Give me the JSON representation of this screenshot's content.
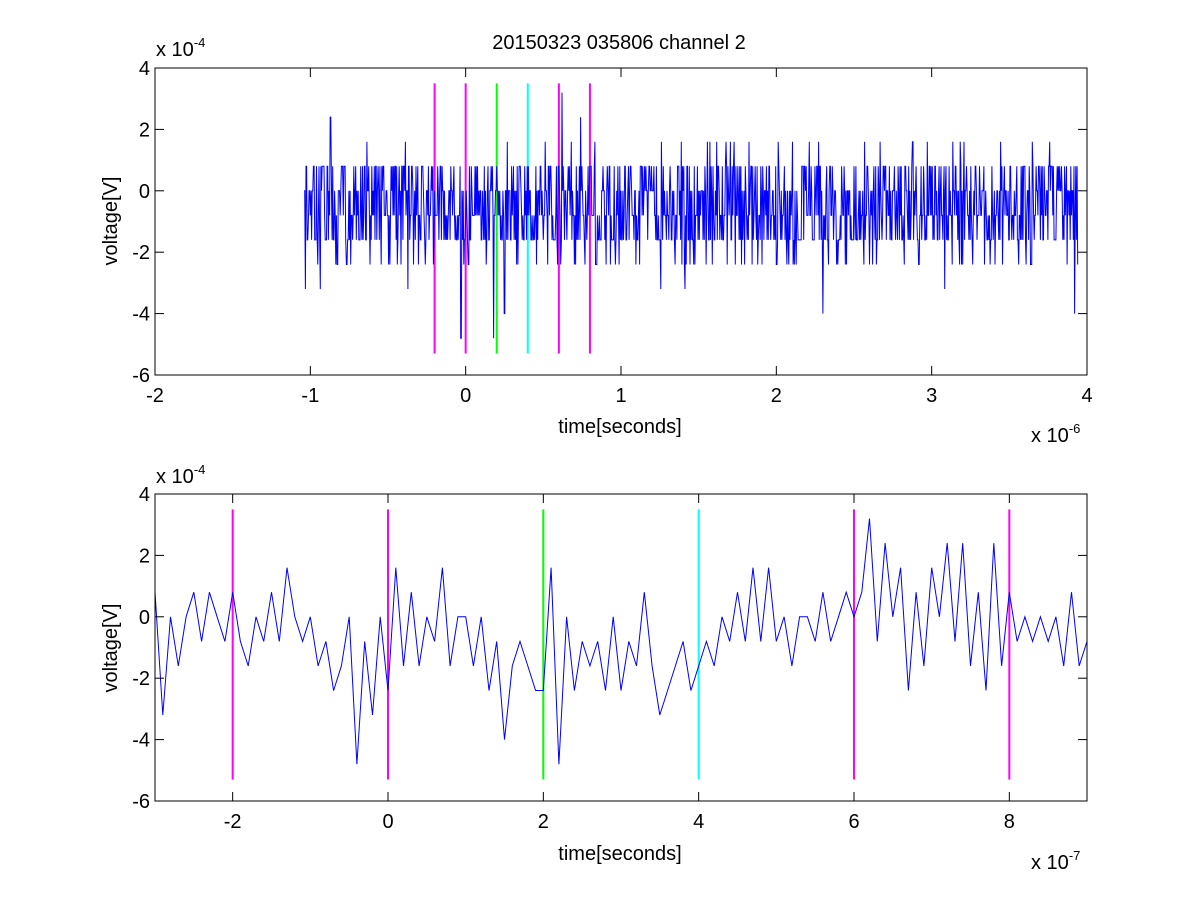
{
  "chart_data": [
    {
      "type": "line",
      "title": "20150323 035806 channel 2",
      "xlabel": "time[seconds]",
      "ylabel": "voltage[V]",
      "x_multiplier": "x 10",
      "x_exponent": "-6",
      "y_multiplier": "x 10",
      "y_exponent": "-4",
      "xlim": [
        -2,
        4
      ],
      "ylim": [
        -6,
        4
      ],
      "xticks": [
        -2,
        -1,
        0,
        1,
        2,
        3,
        4
      ],
      "yticks": [
        -6,
        -4,
        -2,
        0,
        2,
        4
      ],
      "trace_color": "#0000ff",
      "grid": false,
      "series": [
        {
          "x_range": [
            -1.04,
            3.94
          ],
          "levels": [
            -4,
            -3.2,
            -2.4,
            -1.6,
            -0.8,
            0,
            0.8,
            1.6,
            2.4,
            3.2
          ],
          "typical_range": [
            -1.6,
            0.8
          ],
          "peaks": [
            {
              "x": -0.87,
              "y": 2.4
            },
            {
              "x": -0.03,
              "y": -4.8
            },
            {
              "x": 0.18,
              "y": -4.8
            },
            {
              "x": 0.25,
              "y": -4.0
            },
            {
              "x": 0.62,
              "y": 3.2
            },
            {
              "x": 0.74,
              "y": 2.4
            },
            {
              "x": 2.3,
              "y": -4.0
            },
            {
              "x": 3.92,
              "y": -4.0
            }
          ]
        }
      ],
      "markers": [
        {
          "x": -0.2,
          "color": "#ff00ff"
        },
        {
          "x": 0.0,
          "color": "#ff00ff"
        },
        {
          "x": 0.2,
          "color": "#00ff00"
        },
        {
          "x": 0.4,
          "color": "#00ffff"
        },
        {
          "x": 0.6,
          "color": "#ff00ff"
        },
        {
          "x": 0.8,
          "color": "#ff00ff"
        }
      ],
      "marker_yrange": [
        -5.3,
        3.5
      ]
    },
    {
      "type": "line",
      "title": "",
      "xlabel": "time[seconds]",
      "ylabel": "voltage[V]",
      "x_multiplier": "x 10",
      "x_exponent": "-7",
      "y_multiplier": "x 10",
      "y_exponent": "-4",
      "xlim": [
        -3,
        9
      ],
      "ylim": [
        -6,
        4
      ],
      "xticks": [
        -2,
        0,
        2,
        4,
        6,
        8
      ],
      "yticks": [
        -6,
        -4,
        -2,
        0,
        2,
        4
      ],
      "trace_color": "#0000ff",
      "grid": false,
      "series": [
        {
          "x": [
            -3.0,
            -2.9,
            -2.8,
            -2.7,
            -2.6,
            -2.5,
            -2.4,
            -2.3,
            -2.2,
            -2.1,
            -2.0,
            -1.9,
            -1.8,
            -1.7,
            -1.6,
            -1.5,
            -1.4,
            -1.3,
            -1.2,
            -1.1,
            -1.0,
            -0.9,
            -0.8,
            -0.7,
            -0.6,
            -0.5,
            -0.4,
            -0.3,
            -0.2,
            -0.1,
            0.0,
            0.1,
            0.2,
            0.3,
            0.4,
            0.5,
            0.6,
            0.7,
            0.8,
            0.9,
            1.0,
            1.1,
            1.2,
            1.3,
            1.4,
            1.5,
            1.6,
            1.7,
            1.8,
            1.9,
            2.0,
            2.1,
            2.2,
            2.3,
            2.4,
            2.5,
            2.6,
            2.7,
            2.8,
            2.9,
            3.0,
            3.1,
            3.2,
            3.3,
            3.4,
            3.5,
            3.6,
            3.7,
            3.8,
            3.9,
            4.0,
            4.1,
            4.2,
            4.3,
            4.4,
            4.5,
            4.6,
            4.7,
            4.8,
            4.9,
            5.0,
            5.1,
            5.2,
            5.3,
            5.4,
            5.5,
            5.6,
            5.7,
            5.8,
            5.9,
            6.0,
            6.1,
            6.2,
            6.3,
            6.4,
            6.5,
            6.6,
            6.7,
            6.8,
            6.9,
            7.0,
            7.1,
            7.2,
            7.3,
            7.4,
            7.5,
            7.6,
            7.7,
            7.8,
            7.9,
            8.0,
            8.1,
            8.2,
            8.3,
            8.4,
            8.5,
            8.6,
            8.7,
            8.8,
            8.9,
            9.0
          ],
          "y": [
            0.8,
            -3.2,
            0.0,
            -1.6,
            0.0,
            0.8,
            -0.8,
            0.8,
            0.0,
            -0.8,
            0.8,
            -0.8,
            -1.6,
            0.0,
            -0.8,
            0.8,
            -0.8,
            1.6,
            0.0,
            -0.8,
            0.0,
            -1.6,
            -0.8,
            -2.4,
            -1.6,
            0.0,
            -4.8,
            -0.8,
            -3.2,
            0.0,
            -2.4,
            1.6,
            -1.6,
            0.8,
            -1.6,
            0.0,
            -0.8,
            1.6,
            -1.6,
            0.0,
            0.0,
            -1.6,
            0.0,
            -2.4,
            -0.8,
            -4.0,
            -1.6,
            -0.8,
            -1.6,
            -2.4,
            -2.4,
            1.6,
            -4.8,
            0.0,
            -2.4,
            -0.8,
            -1.6,
            -0.8,
            -2.4,
            0.0,
            -2.4,
            -0.8,
            -1.6,
            0.8,
            -1.6,
            -3.2,
            -2.4,
            -1.6,
            -0.8,
            -2.4,
            -1.6,
            -0.8,
            -1.6,
            0.0,
            -0.8,
            0.8,
            -0.8,
            1.6,
            -0.8,
            1.6,
            -0.8,
            0.0,
            -1.6,
            0.0,
            0.0,
            -0.8,
            0.8,
            -0.8,
            0.0,
            0.8,
            0.0,
            0.8,
            3.2,
            -0.8,
            2.4,
            0.0,
            1.6,
            -2.4,
            0.8,
            -1.6,
            1.6,
            0.0,
            2.4,
            -0.8,
            2.4,
            -1.6,
            0.8,
            -2.4,
            2.4,
            -1.6,
            0.8,
            -0.8,
            0.0,
            -0.8,
            0.0,
            -0.8,
            0.0,
            -1.6,
            0.8,
            -1.6,
            -0.8
          ]
        }
      ],
      "markers": [
        {
          "x": -2,
          "color": "#ff00ff"
        },
        {
          "x": 0,
          "color": "#ff00ff"
        },
        {
          "x": 2,
          "color": "#00ff00"
        },
        {
          "x": 4,
          "color": "#00ffff"
        },
        {
          "x": 6,
          "color": "#ff00ff"
        },
        {
          "x": 8,
          "color": "#ff00ff"
        }
      ],
      "marker_yrange": [
        -5.3,
        3.5
      ]
    }
  ]
}
